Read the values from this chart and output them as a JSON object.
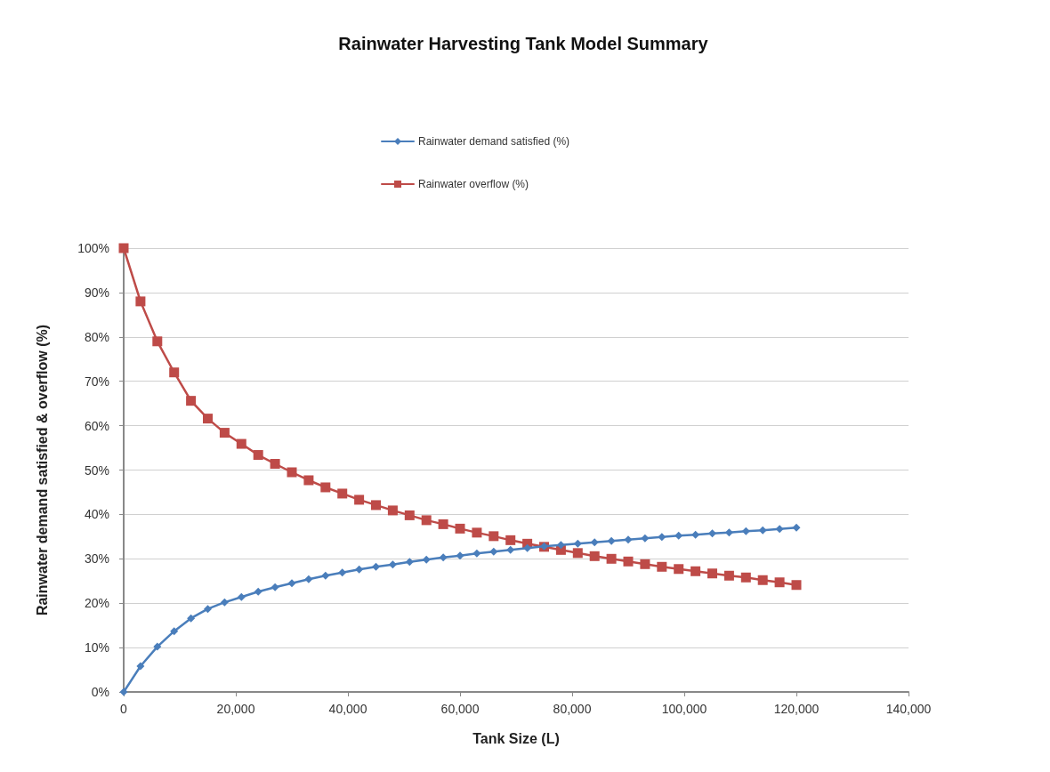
{
  "chart_data": {
    "type": "line",
    "title": "Rainwater Harvesting Tank Model Summary",
    "xlabel": "Tank Size (L)",
    "ylabel": "Rainwater demand satisfied & overflow (%)",
    "x": [
      0,
      3000,
      6000,
      9000,
      12000,
      15000,
      18000,
      21000,
      24000,
      27000,
      30000,
      33000,
      36000,
      39000,
      42000,
      45000,
      48000,
      51000,
      54000,
      57000,
      60000,
      63000,
      66000,
      69000,
      72000,
      75000,
      78000,
      81000,
      84000,
      87000,
      90000,
      93000,
      96000,
      99000,
      102000,
      105000,
      108000,
      111000,
      114000,
      117000,
      120000
    ],
    "series": [
      {
        "name": "Rainwater demand satisfied (%)",
        "color": "#4a7ebb",
        "marker": "diamond",
        "values": [
          0,
          5.8,
          10.2,
          13.7,
          16.6,
          18.7,
          20.2,
          21.4,
          22.6,
          23.6,
          24.5,
          25.4,
          26.2,
          26.9,
          27.6,
          28.2,
          28.7,
          29.3,
          29.8,
          30.3,
          30.7,
          31.2,
          31.6,
          32.0,
          32.4,
          32.8,
          33.1,
          33.4,
          33.7,
          34.0,
          34.3,
          34.6,
          34.9,
          35.2,
          35.4,
          35.7,
          35.9,
          36.2,
          36.4,
          36.7,
          37.0
        ]
      },
      {
        "name": "Rainwater overflow (%)",
        "color": "#be4b48",
        "marker": "square",
        "values": [
          100,
          88,
          79,
          72,
          65.6,
          61.6,
          58.4,
          55.9,
          53.4,
          51.4,
          49.5,
          47.7,
          46.1,
          44.7,
          43.3,
          42.1,
          40.9,
          39.8,
          38.7,
          37.8,
          36.8,
          35.9,
          35.1,
          34.2,
          33.4,
          32.7,
          32.0,
          31.3,
          30.6,
          30.0,
          29.4,
          28.8,
          28.2,
          27.7,
          27.2,
          26.7,
          26.2,
          25.8,
          25.2,
          24.7,
          24.1
        ]
      }
    ],
    "xlim": [
      0,
      140000
    ],
    "xticks": [
      0,
      {
        "value": 20000,
        "label": "20,000"
      },
      {
        "value": 40000,
        "label": "40,000"
      },
      {
        "value": 60000,
        "label": "60,000"
      },
      {
        "value": 80000,
        "label": "80,000"
      },
      {
        "value": 100000,
        "label": "100,000"
      },
      {
        "value": 120000,
        "label": "120,000"
      },
      {
        "value": 140000,
        "label": "140,000"
      }
    ],
    "ylim": [
      0,
      100
    ],
    "yticks": [
      {
        "value": 0,
        "label": "0%"
      },
      {
        "value": 10,
        "label": "10%"
      },
      {
        "value": 20,
        "label": "20%"
      },
      {
        "value": 30,
        "label": "30%"
      },
      {
        "value": 40,
        "label": "40%"
      },
      {
        "value": 50,
        "label": "50%"
      },
      {
        "value": 60,
        "label": "60%"
      },
      {
        "value": 70,
        "label": "70%"
      },
      {
        "value": 80,
        "label": "80%"
      },
      {
        "value": 90,
        "label": "90%"
      },
      {
        "value": 100,
        "label": "100%"
      }
    ],
    "grid": "y",
    "legend": "top",
    "line_style": "solid"
  }
}
